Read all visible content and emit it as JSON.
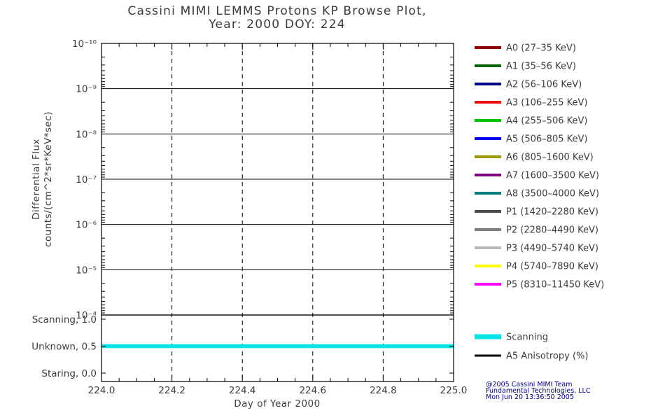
{
  "title": {
    "line1": "Cassini MIMI LEMMS Protons KP Browse Plot,",
    "line2": "Year: 2000 DOY: 224"
  },
  "axes": {
    "x_label": "Day of Year 2000",
    "y_label_line1": "Differential Flux",
    "y_label_line2": "counts/(cm^2*sr*KeV*sec)"
  },
  "credit": {
    "line1": "@2005 Cassini MIMI Team",
    "line2": "Fundamental Technologies, LLC",
    "line3": "Mon Jun 20 13:36:50 2005"
  },
  "chart_data": {
    "type": "line",
    "title": "Cassini MIMI LEMMS Protons KP Browse Plot, Year: 2000 DOY: 224",
    "x_axis": {
      "label": "Day of Year 2000",
      "range": [
        224.0,
        225.0
      ],
      "major_ticks": [
        224.0,
        224.2,
        224.4,
        224.6,
        224.8,
        225.0
      ],
      "tick_labels": [
        "224.0",
        "224.2",
        "224.4",
        "224.6",
        "224.8",
        "225.0"
      ],
      "minor_tick_step": 0.05,
      "grid": "dashed-vertical"
    },
    "flux_panel": {
      "y_scale": "log",
      "y_label": "Differential Flux counts/(cm^2*sr*KeV*sec)",
      "y_tick_exponents": [
        -10,
        -9,
        -8,
        -7,
        -6,
        -5,
        -4
      ],
      "grid": "solid-horizontal",
      "series": []
    },
    "mode_panel": {
      "levels": [
        {
          "label": "Scanning, 1.0",
          "value": 1.0
        },
        {
          "label": "Unknown, 0.5",
          "value": 0.5
        },
        {
          "label": "Staring, 0.0",
          "value": 0.0
        }
      ],
      "series": [
        {
          "name": "Scanning",
          "color": "#00e5e5",
          "x": [
            224.0,
            225.0
          ],
          "y": [
            0.5,
            0.5
          ],
          "linewidth": 5.5
        }
      ]
    }
  },
  "legend": {
    "entries": [
      {
        "label": "A0 (27–35 KeV)",
        "color": "#8b0000"
      },
      {
        "label": "A1 (35–56 KeV)",
        "color": "#006400"
      },
      {
        "label": "A2 (56–106 KeV)",
        "color": "#00008b"
      },
      {
        "label": "A3 (106–255 KeV)",
        "color": "#ee1111"
      },
      {
        "label": "A4 (255–506 KeV)",
        "color": "#00c000"
      },
      {
        "label": "A5 (506–805 KeV)",
        "color": "#0000ee"
      },
      {
        "label": "A6 (805–1600 KeV)",
        "color": "#9c9c00"
      },
      {
        "label": "A7 (1600–3500 KeV)",
        "color": "#7d007d"
      },
      {
        "label": "A8 (3500–4000 KeV)",
        "color": "#007d7d"
      },
      {
        "label": "P1 (1420–2280 KeV)",
        "color": "#4f4f4f"
      },
      {
        "label": "P2 (2280–4490 KeV)",
        "color": "#7f7f7f"
      },
      {
        "label": "P3 (4490–5740 KeV)",
        "color": "#b8b8b8"
      },
      {
        "label": "P4 (5740–7890 KeV)",
        "color": "#ffff00"
      },
      {
        "label": "P5 (8310–11450 KeV)",
        "color": "#ff00ff"
      }
    ],
    "mode_entries": [
      {
        "label": "Scanning",
        "color": "#00e5e5",
        "linewidth": 7
      },
      {
        "label": "A5 Anisotropy (%)",
        "color": "#000000",
        "linewidth": 3
      }
    ]
  }
}
